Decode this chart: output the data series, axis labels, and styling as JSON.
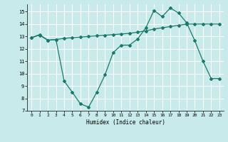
{
  "line1_x": [
    0,
    1,
    2,
    3,
    4,
    5,
    6,
    7,
    8,
    9,
    10,
    11,
    12,
    13,
    14,
    15,
    16,
    17,
    18,
    19,
    20,
    21,
    22,
    23
  ],
  "line1_y": [
    12.9,
    13.15,
    12.7,
    12.75,
    9.4,
    8.5,
    7.55,
    7.3,
    8.5,
    9.9,
    11.7,
    12.3,
    12.3,
    12.8,
    13.7,
    15.1,
    14.6,
    15.3,
    14.9,
    14.1,
    12.65,
    11.0,
    9.6,
    9.6
  ],
  "line2_x": [
    0,
    1,
    2,
    3,
    4,
    5,
    6,
    7,
    8,
    9,
    10,
    11,
    12,
    13,
    14,
    15,
    16,
    17,
    18,
    19,
    20,
    21,
    22,
    23
  ],
  "line2_y": [
    12.9,
    13.1,
    12.7,
    12.75,
    12.85,
    12.9,
    12.95,
    13.0,
    13.05,
    13.1,
    13.15,
    13.2,
    13.25,
    13.35,
    13.45,
    13.6,
    13.7,
    13.8,
    13.9,
    14.0,
    14.0,
    14.0,
    14.0,
    14.0
  ],
  "line_color": "#1a7a6a",
  "background_color": "#c8eaea",
  "grid_color": "#ffffff",
  "xlabel": "Humidex (Indice chaleur)",
  "xlim": [
    -0.5,
    23.5
  ],
  "ylim": [
    7,
    15.6
  ],
  "yticks": [
    7,
    8,
    9,
    10,
    11,
    12,
    13,
    14,
    15
  ],
  "xticks": [
    0,
    1,
    2,
    3,
    4,
    5,
    6,
    7,
    8,
    9,
    10,
    11,
    12,
    13,
    14,
    15,
    16,
    17,
    18,
    19,
    20,
    21,
    22,
    23
  ]
}
